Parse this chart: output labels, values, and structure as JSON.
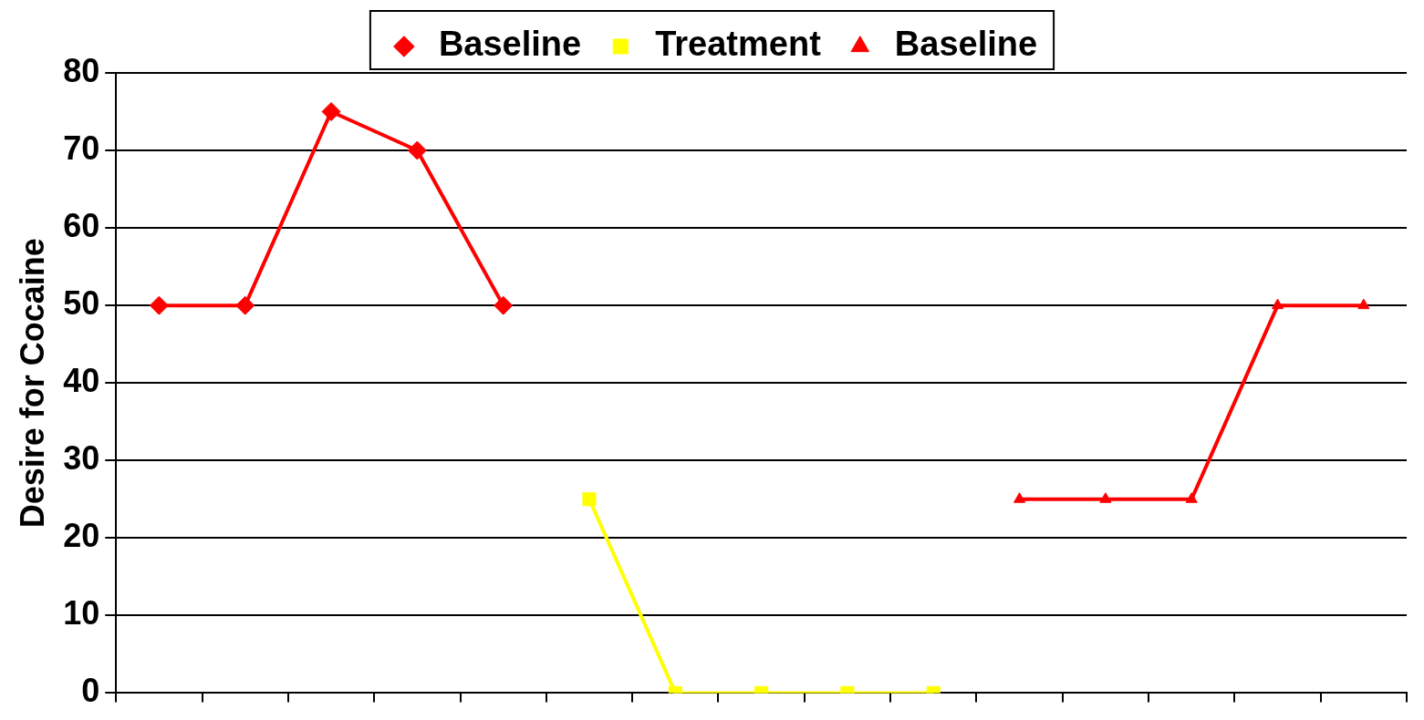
{
  "chart_data": {
    "type": "line",
    "ylabel": "Desire for Cocaine",
    "categories": [
      null,
      null,
      null,
      null,
      null,
      null,
      null,
      null,
      null,
      null,
      null,
      null,
      null,
      null,
      null
    ],
    "series": [
      {
        "name": "Baseline",
        "color": "#ff0000",
        "marker": "diamond",
        "values": [
          50,
          50,
          75,
          70,
          50,
          null,
          null,
          null,
          null,
          null,
          null,
          null,
          null,
          null,
          null
        ]
      },
      {
        "name": "Treatment",
        "color": "#ffff00",
        "marker": "square",
        "values": [
          null,
          null,
          null,
          null,
          null,
          25,
          0,
          0,
          0,
          0,
          null,
          null,
          null,
          null,
          null
        ]
      },
      {
        "name": "Baseline",
        "color": "#ff0000",
        "marker": "triangle",
        "values": [
          null,
          null,
          null,
          null,
          null,
          null,
          null,
          null,
          null,
          null,
          25,
          25,
          25,
          50,
          50
        ]
      }
    ],
    "ylim": [
      0,
      80
    ],
    "yticks": [
      0,
      10,
      20,
      30,
      40,
      50,
      60,
      70,
      80
    ],
    "grid": "y",
    "legend": "top",
    "tick_labels": "y",
    "line_style": "solid"
  }
}
